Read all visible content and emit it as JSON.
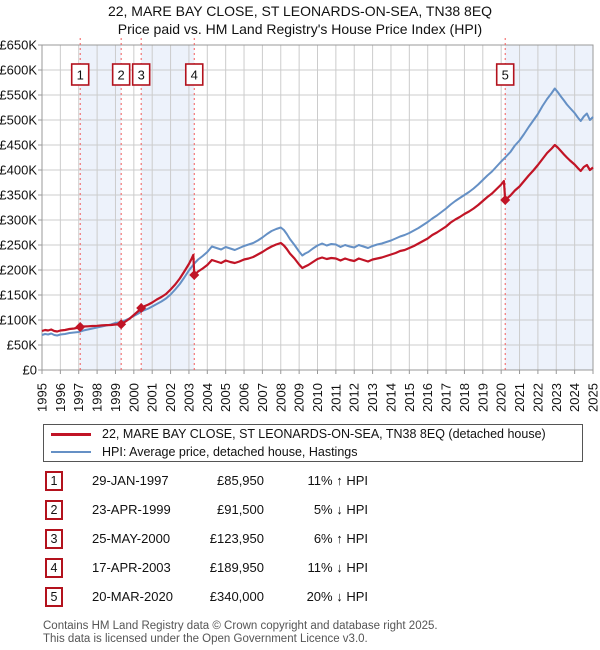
{
  "header": {
    "title": "22, MARE BAY CLOSE, ST LEONARDS-ON-SEA, TN38 8EQ",
    "subtitle": "Price paid vs. HM Land Registry's House Price Index (HPI)"
  },
  "colors": {
    "property": "#c11426",
    "hpi": "#6590c5",
    "band": "#edf2fb",
    "grid": "#cccccc",
    "border": "#999999",
    "dashed_sale_line": "#f25c5c",
    "marker_box_border": "#b3121d",
    "axis_text": "#111111"
  },
  "chart_data": {
    "type": "line",
    "x_ticks": [
      1995,
      1996,
      1997,
      1998,
      1999,
      2000,
      2001,
      2002,
      2003,
      2004,
      2005,
      2006,
      2007,
      2008,
      2009,
      2010,
      2011,
      2012,
      2013,
      2014,
      2015,
      2016,
      2017,
      2018,
      2019,
      2020,
      2021,
      2022,
      2023,
      2024,
      2025
    ],
    "xlim": [
      1995,
      2025
    ],
    "ylim": [
      0,
      650000
    ],
    "y_tick_step": 50000,
    "y_tick_labels": [
      "£0",
      "£50K",
      "£100K",
      "£150K",
      "£200K",
      "£250K",
      "£300K",
      "£350K",
      "£400K",
      "£450K",
      "£500K",
      "£550K",
      "£600K",
      "£650K"
    ],
    "grid": true,
    "points_unit": "GBP thousands",
    "bands": [
      [
        1997.08,
        1999.31
      ],
      [
        2000.4,
        2003.29
      ],
      [
        2020.22,
        2025.0
      ]
    ],
    "series": [
      {
        "name": "hpi",
        "legend": "HPI: Average price, detached house, Hastings",
        "points": [
          [
            1995.0,
            70
          ],
          [
            1995.17,
            72
          ],
          [
            1995.33,
            71
          ],
          [
            1995.5,
            73
          ],
          [
            1995.67,
            70
          ],
          [
            1995.83,
            69
          ],
          [
            1996.0,
            71
          ],
          [
            1996.25,
            72
          ],
          [
            1996.5,
            74
          ],
          [
            1996.75,
            75
          ],
          [
            1997.0,
            76
          ],
          [
            1997.08,
            77
          ],
          [
            1997.25,
            79
          ],
          [
            1997.5,
            81
          ],
          [
            1997.75,
            83
          ],
          [
            1998.0,
            85
          ],
          [
            1998.25,
            87
          ],
          [
            1998.5,
            89
          ],
          [
            1998.75,
            91
          ],
          [
            1999.0,
            94
          ],
          [
            1999.31,
            96
          ],
          [
            1999.5,
            99
          ],
          [
            1999.75,
            103
          ],
          [
            2000.0,
            108
          ],
          [
            2000.25,
            113
          ],
          [
            2000.4,
            117
          ],
          [
            2000.6,
            120
          ],
          [
            2000.8,
            123
          ],
          [
            2001.0,
            127
          ],
          [
            2001.25,
            132
          ],
          [
            2001.5,
            137
          ],
          [
            2001.75,
            143
          ],
          [
            2002.0,
            151
          ],
          [
            2002.25,
            161
          ],
          [
            2002.5,
            172
          ],
          [
            2002.75,
            185
          ],
          [
            2003.0,
            199
          ],
          [
            2003.29,
            213
          ],
          [
            2003.5,
            221
          ],
          [
            2003.75,
            228
          ],
          [
            2004.0,
            236
          ],
          [
            2004.25,
            247
          ],
          [
            2004.5,
            244
          ],
          [
            2004.75,
            241
          ],
          [
            2005.0,
            246
          ],
          [
            2005.25,
            243
          ],
          [
            2005.5,
            240
          ],
          [
            2005.75,
            244
          ],
          [
            2006.0,
            248
          ],
          [
            2006.25,
            251
          ],
          [
            2006.5,
            254
          ],
          [
            2006.75,
            259
          ],
          [
            2007.0,
            265
          ],
          [
            2007.25,
            272
          ],
          [
            2007.5,
            278
          ],
          [
            2007.75,
            282
          ],
          [
            2008.0,
            285
          ],
          [
            2008.17,
            280
          ],
          [
            2008.33,
            272
          ],
          [
            2008.5,
            262
          ],
          [
            2008.75,
            250
          ],
          [
            2009.0,
            237
          ],
          [
            2009.17,
            229
          ],
          [
            2009.33,
            233
          ],
          [
            2009.5,
            236
          ],
          [
            2009.75,
            243
          ],
          [
            2010.0,
            249
          ],
          [
            2010.25,
            253
          ],
          [
            2010.5,
            249
          ],
          [
            2010.75,
            252
          ],
          [
            2011.0,
            251
          ],
          [
            2011.25,
            246
          ],
          [
            2011.5,
            250
          ],
          [
            2011.75,
            247
          ],
          [
            2012.0,
            245
          ],
          [
            2012.25,
            250
          ],
          [
            2012.5,
            247
          ],
          [
            2012.75,
            244
          ],
          [
            2013.0,
            248
          ],
          [
            2013.25,
            251
          ],
          [
            2013.5,
            253
          ],
          [
            2013.75,
            256
          ],
          [
            2014.0,
            259
          ],
          [
            2014.25,
            263
          ],
          [
            2014.5,
            267
          ],
          [
            2014.75,
            270
          ],
          [
            2015.0,
            274
          ],
          [
            2015.25,
            279
          ],
          [
            2015.5,
            284
          ],
          [
            2015.75,
            290
          ],
          [
            2016.0,
            296
          ],
          [
            2016.25,
            303
          ],
          [
            2016.5,
            309
          ],
          [
            2016.75,
            316
          ],
          [
            2017.0,
            323
          ],
          [
            2017.25,
            331
          ],
          [
            2017.5,
            338
          ],
          [
            2017.75,
            344
          ],
          [
            2018.0,
            350
          ],
          [
            2018.25,
            356
          ],
          [
            2018.5,
            363
          ],
          [
            2018.75,
            371
          ],
          [
            2019.0,
            380
          ],
          [
            2019.25,
            389
          ],
          [
            2019.5,
            397
          ],
          [
            2019.75,
            407
          ],
          [
            2020.0,
            417
          ],
          [
            2020.22,
            425
          ],
          [
            2020.5,
            436
          ],
          [
            2020.75,
            449
          ],
          [
            2021.0,
            459
          ],
          [
            2021.25,
            472
          ],
          [
            2021.5,
            486
          ],
          [
            2021.75,
            499
          ],
          [
            2022.0,
            512
          ],
          [
            2022.25,
            528
          ],
          [
            2022.5,
            542
          ],
          [
            2022.75,
            554
          ],
          [
            2022.92,
            563
          ],
          [
            2023.08,
            556
          ],
          [
            2023.25,
            547
          ],
          [
            2023.42,
            539
          ],
          [
            2023.58,
            531
          ],
          [
            2023.75,
            524
          ],
          [
            2024.0,
            514
          ],
          [
            2024.17,
            505
          ],
          [
            2024.33,
            498
          ],
          [
            2024.5,
            507
          ],
          [
            2024.67,
            513
          ],
          [
            2024.83,
            500
          ],
          [
            2025.0,
            506
          ]
        ]
      },
      {
        "name": "property",
        "legend": "22, MARE BAY CLOSE, ST LEONARDS-ON-SEA, TN38 8EQ (detached house)",
        "points": [
          [
            1995.0,
            78
          ],
          [
            1995.17,
            80
          ],
          [
            1995.33,
            79
          ],
          [
            1995.5,
            81
          ],
          [
            1995.67,
            78
          ],
          [
            1995.83,
            77
          ],
          [
            1996.0,
            79
          ],
          [
            1996.25,
            80
          ],
          [
            1996.5,
            82
          ],
          [
            1996.75,
            83
          ],
          [
            1997.0,
            85
          ],
          [
            1997.08,
            86
          ],
          [
            1997.25,
            87
          ],
          [
            1997.5,
            87.5
          ],
          [
            1997.75,
            88
          ],
          [
            1998.0,
            88.5
          ],
          [
            1998.25,
            89.3
          ],
          [
            1998.5,
            89.7
          ],
          [
            1998.75,
            90
          ],
          [
            1999.0,
            91
          ],
          [
            1999.31,
            91.5
          ],
          [
            1999.5,
            96
          ],
          [
            1999.75,
            102
          ],
          [
            2000.0,
            110
          ],
          [
            2000.25,
            118
          ],
          [
            2000.4,
            124
          ],
          [
            2000.6,
            128
          ],
          [
            2000.8,
            131
          ],
          [
            2001.0,
            135
          ],
          [
            2001.25,
            141
          ],
          [
            2001.5,
            146
          ],
          [
            2001.75,
            152
          ],
          [
            2002.0,
            161
          ],
          [
            2002.25,
            171
          ],
          [
            2002.5,
            183
          ],
          [
            2002.75,
            197
          ],
          [
            2003.0,
            212
          ],
          [
            2003.15,
            223
          ],
          [
            2003.24,
            230
          ],
          [
            2003.29,
            190
          ],
          [
            2003.5,
            197
          ],
          [
            2003.75,
            203
          ],
          [
            2004.0,
            210
          ],
          [
            2004.25,
            220
          ],
          [
            2004.5,
            217
          ],
          [
            2004.75,
            214
          ],
          [
            2005.0,
            219
          ],
          [
            2005.25,
            216
          ],
          [
            2005.5,
            214
          ],
          [
            2005.75,
            217
          ],
          [
            2006.0,
            221
          ],
          [
            2006.25,
            223
          ],
          [
            2006.5,
            226
          ],
          [
            2006.75,
            231
          ],
          [
            2007.0,
            236
          ],
          [
            2007.25,
            242
          ],
          [
            2007.5,
            247
          ],
          [
            2007.75,
            251
          ],
          [
            2008.0,
            254
          ],
          [
            2008.17,
            249
          ],
          [
            2008.33,
            242
          ],
          [
            2008.5,
            233
          ],
          [
            2008.75,
            223
          ],
          [
            2009.0,
            211
          ],
          [
            2009.17,
            204
          ],
          [
            2009.33,
            207
          ],
          [
            2009.5,
            210
          ],
          [
            2009.75,
            216
          ],
          [
            2010.0,
            222
          ],
          [
            2010.25,
            225
          ],
          [
            2010.5,
            222
          ],
          [
            2010.75,
            224
          ],
          [
            2011.0,
            223
          ],
          [
            2011.25,
            219
          ],
          [
            2011.5,
            223
          ],
          [
            2011.75,
            220
          ],
          [
            2012.0,
            218
          ],
          [
            2012.25,
            223
          ],
          [
            2012.5,
            220
          ],
          [
            2012.75,
            217
          ],
          [
            2013.0,
            221
          ],
          [
            2013.25,
            223
          ],
          [
            2013.5,
            225
          ],
          [
            2013.75,
            228
          ],
          [
            2014.0,
            231
          ],
          [
            2014.25,
            234
          ],
          [
            2014.5,
            238
          ],
          [
            2014.75,
            240
          ],
          [
            2015.0,
            244
          ],
          [
            2015.25,
            248
          ],
          [
            2015.5,
            253
          ],
          [
            2015.75,
            258
          ],
          [
            2016.0,
            263
          ],
          [
            2016.25,
            270
          ],
          [
            2016.5,
            275
          ],
          [
            2016.75,
            281
          ],
          [
            2017.0,
            287
          ],
          [
            2017.25,
            295
          ],
          [
            2017.5,
            301
          ],
          [
            2017.75,
            306
          ],
          [
            2018.0,
            312
          ],
          [
            2018.25,
            317
          ],
          [
            2018.5,
            323
          ],
          [
            2018.75,
            330
          ],
          [
            2019.0,
            338
          ],
          [
            2019.25,
            346
          ],
          [
            2019.5,
            353
          ],
          [
            2019.75,
            362
          ],
          [
            2020.0,
            371
          ],
          [
            2020.15,
            378
          ],
          [
            2020.22,
            340
          ],
          [
            2020.5,
            349
          ],
          [
            2020.75,
            359
          ],
          [
            2021.0,
            367
          ],
          [
            2021.25,
            378
          ],
          [
            2021.5,
            389
          ],
          [
            2021.75,
            399
          ],
          [
            2022.0,
            410
          ],
          [
            2022.25,
            422
          ],
          [
            2022.5,
            434
          ],
          [
            2022.75,
            443
          ],
          [
            2022.92,
            450
          ],
          [
            2023.08,
            445
          ],
          [
            2023.25,
            438
          ],
          [
            2023.42,
            431
          ],
          [
            2023.58,
            425
          ],
          [
            2023.75,
            419
          ],
          [
            2024.0,
            411
          ],
          [
            2024.17,
            404
          ],
          [
            2024.33,
            398
          ],
          [
            2024.5,
            406
          ],
          [
            2024.67,
            410
          ],
          [
            2024.83,
            400
          ],
          [
            2025.0,
            405
          ]
        ]
      }
    ],
    "sale_markers": [
      {
        "n": "1",
        "x": 1997.08,
        "value_k": 85.95
      },
      {
        "n": "2",
        "x": 1999.31,
        "value_k": 91.5
      },
      {
        "n": "3",
        "x": 2000.4,
        "value_k": 123.95
      },
      {
        "n": "4",
        "x": 2003.29,
        "value_k": 189.95
      },
      {
        "n": "5",
        "x": 2020.22,
        "value_k": 340
      }
    ]
  },
  "legend": {
    "items": [
      {
        "label": "22, MARE BAY CLOSE, ST LEONARDS-ON-SEA, TN38 8EQ (detached house)",
        "color": "#c11426"
      },
      {
        "label": "HPI: Average price, detached house, Hastings",
        "color": "#6590c5"
      }
    ]
  },
  "table": {
    "rows": [
      {
        "num": "1",
        "date": "29-JAN-1997",
        "price": "£85,950",
        "change": "11% ↑ HPI"
      },
      {
        "num": "2",
        "date": "23-APR-1999",
        "price": "£91,500",
        "change": "5% ↓ HPI"
      },
      {
        "num": "3",
        "date": "25-MAY-2000",
        "price": "£123,950",
        "change": "6% ↑ HPI"
      },
      {
        "num": "4",
        "date": "17-APR-2003",
        "price": "£189,950",
        "change": "11% ↓ HPI"
      },
      {
        "num": "5",
        "date": "20-MAR-2020",
        "price": "£340,000",
        "change": "20% ↓ HPI"
      }
    ]
  },
  "footer": {
    "line1": "Contains HM Land Registry data © Crown copyright and database right 2025.",
    "line2": "This data is licensed under the Open Government Licence v3.0."
  }
}
